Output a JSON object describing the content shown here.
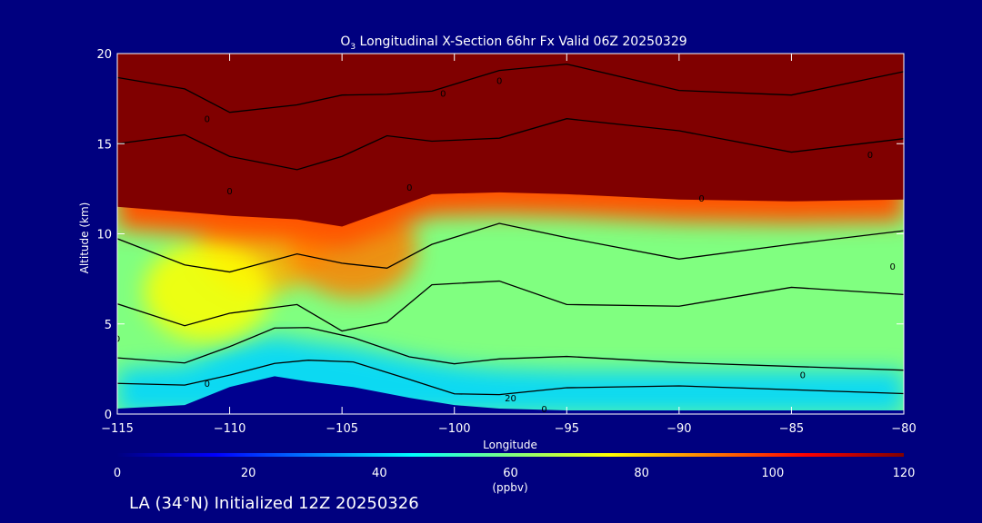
{
  "chart_data": {
    "type": "heatmap",
    "title": "O",
    "title_subscript": "3",
    "title_rest": " Longitudinal X-Section 66hr  Fx Valid 06Z 20250329",
    "xlabel": "Longitude",
    "ylabel": "Altitude (km)",
    "xlim": [
      -115,
      -80
    ],
    "ylim": [
      0,
      20
    ],
    "x_ticks": [
      -115,
      -110,
      -105,
      -100,
      -95,
      -90,
      -85,
      -80
    ],
    "x_tick_labels": [
      "−115",
      "−110",
      "−105",
      "−100",
      "−95",
      "−90",
      "−85",
      "−80"
    ],
    "y_ticks": [
      0,
      5,
      10,
      15,
      20
    ],
    "y_tick_labels": [
      "0",
      "5",
      "10",
      "15",
      "20"
    ],
    "colorbar": {
      "min": 0,
      "max": 120,
      "ticks": [
        0,
        20,
        40,
        60,
        80,
        100,
        120
      ],
      "tick_labels": [
        "0",
        "20",
        "40",
        "60",
        "80",
        "100",
        "120"
      ],
      "unit": "(ppbv)",
      "colors": [
        "#000080",
        "#0000ff",
        "#0080ff",
        "#00ffff",
        "#80ff80",
        "#ffff00",
        "#ff8000",
        "#ff0000",
        "#800000"
      ]
    },
    "fields": {
      "tropopause_km": [
        [
          -115,
          11.5
        ],
        [
          -112,
          11.2
        ],
        [
          -110,
          11.0
        ],
        [
          -107,
          10.8
        ],
        [
          -105,
          10.4
        ],
        [
          -103,
          11.3
        ],
        [
          -101,
          12.2
        ],
        [
          -98,
          12.3
        ],
        [
          -95,
          12.2
        ],
        [
          -90,
          11.9
        ],
        [
          -85,
          11.8
        ],
        [
          -80,
          11.9
        ]
      ],
      "terrain_km": [
        [
          -115,
          0.3
        ],
        [
          -112,
          0.5
        ],
        [
          -110,
          1.5
        ],
        [
          -108,
          2.1
        ],
        [
          -106.5,
          1.8
        ],
        [
          -104.5,
          1.5
        ],
        [
          -102,
          0.9
        ],
        [
          -100,
          0.5
        ],
        [
          -98,
          0.3
        ],
        [
          -95,
          0.2
        ],
        [
          -90,
          0.2
        ],
        [
          -80,
          0.2
        ]
      ],
      "stratosphere_value_ppbv": 120,
      "free_troposphere_value_ppbv": 60,
      "boundary_layer_value_ppbv": 40,
      "enhanced_regions": [
        {
          "lon": -108.5,
          "alt_km": 9.5,
          "value_ppbv": 85
        },
        {
          "lon": -104.5,
          "alt_km": 9.2,
          "value_ppbv": 90
        },
        {
          "lon": -111,
          "alt_km": 6.8,
          "value_ppbv": 75
        }
      ]
    },
    "contour_labels": [
      {
        "text": "0",
        "lon": -111,
        "alt_km": 16.2
      },
      {
        "text": "0",
        "lon": -110,
        "alt_km": 12.2
      },
      {
        "text": "0",
        "lon": -100.5,
        "alt_km": 17.6
      },
      {
        "text": "0",
        "lon": -98,
        "alt_km": 18.3
      },
      {
        "text": "0",
        "lon": -102,
        "alt_km": 12.4
      },
      {
        "text": "0",
        "lon": -89,
        "alt_km": 11.8
      },
      {
        "text": "0",
        "lon": -81.5,
        "alt_km": 14.2
      },
      {
        "text": "0",
        "lon": -80.5,
        "alt_km": 8.0
      },
      {
        "text": "0",
        "lon": -115,
        "alt_km": 4.0
      },
      {
        "text": "0",
        "lon": -111,
        "alt_km": 1.5
      },
      {
        "text": "0",
        "lon": -84.5,
        "alt_km": 2.0
      },
      {
        "text": "20",
        "lon": -97.5,
        "alt_km": 0.7
      },
      {
        "text": "0",
        "lon": -96,
        "alt_km": 0.1
      }
    ],
    "footer": "LA (34°N) Initialized 12Z 20250326"
  }
}
